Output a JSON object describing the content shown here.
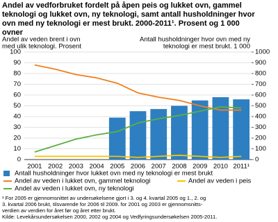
{
  "chart_data": {
    "type": "bar-line",
    "title": [
      "Andel av vedforbruket fordelt på åpen peis og lukket ovn, gammel",
      "teknologi og lukket ovn, ny teknologi, samt antall husholdninger hvor",
      "ovn med ny teknologi er mest brukt. 2000-2011¹. Prosent og 1 000",
      "ovner"
    ],
    "ylabel": [
      "Andel av veden brent i ovn",
      "med ulik teknologi. Prosent"
    ],
    "y2label": [
      "Antall husholdninger hvor ovn med ny",
      "teknologi er mest brukt. 1 000"
    ],
    "categories": [
      "2001",
      "2002",
      "2003",
      "2004",
      "2005",
      "2006",
      "2007",
      "2008",
      "2009",
      "2010",
      "2011¹"
    ],
    "series": [
      {
        "name": "Antall husholdninger hvor lukket ovn med ny teknologi er mest brukt",
        "color": "#2e7fc1",
        "kind": "bar",
        "axis": "y2",
        "values": [
          null,
          null,
          null,
          null,
          390,
          450,
          470,
          500,
          550,
          580,
          560
        ]
      },
      {
        "name": "Andel av veden i lukket ovn, gammel teknologi",
        "color": "#f07f1f",
        "kind": "line",
        "values": [
          88,
          84,
          79,
          76,
          71,
          62,
          58,
          55,
          50,
          46,
          46
        ]
      },
      {
        "name": "Andel av veden i lukket ovn, ny teknologi",
        "color": "#5bb042",
        "kind": "line",
        "values": [
          7,
          13,
          19,
          23,
          26,
          34,
          38,
          41,
          45,
          49,
          48
        ]
      },
      {
        "name": "Andel av veden i peis",
        "color": "#f5c400",
        "kind": "line",
        "values": [
          3,
          3,
          3,
          3,
          3,
          2,
          3,
          4,
          3,
          2,
          3
        ]
      }
    ],
    "ylim": [
      0,
      100
    ],
    "yticks": [
      0,
      10,
      20,
      30,
      40,
      50,
      60,
      70,
      80,
      90,
      100
    ],
    "y2lim": [
      0,
      1000
    ],
    "y2ticks": [
      0,
      100,
      200,
      300,
      400,
      500,
      600,
      700,
      800,
      900,
      1000
    ],
    "grid": true,
    "footnote": [
      "¹ For 2005 er gjennomsnittet av undersøkelsene gjort i 3. og 4. kvartal 2005 og 1., 2. og",
      "3. kvartal 2006 brukt, tilsvarende for 2006 til 2009.  for 2001 og 2003 er gjennomsnitts-",
      "verdien av verdien for året før og året etter brukt."
    ],
    "source": "Kilde: Levekårsundersøkelsen 2000, 2002 og 2004 og Vedfyringsundersøkelsen 2005-2011."
  }
}
